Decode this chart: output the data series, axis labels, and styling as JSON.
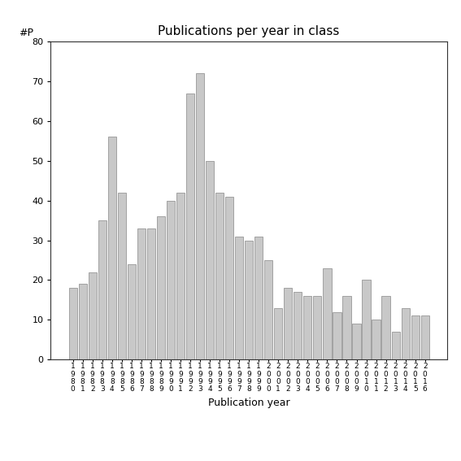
{
  "years": [
    "1980",
    "1981",
    "1982",
    "1983",
    "1984",
    "1985",
    "1986",
    "1987",
    "1988",
    "1989",
    "1990",
    "1991",
    "1992",
    "1993",
    "1994",
    "1995",
    "1996",
    "1997",
    "1998",
    "1999",
    "2000",
    "2001",
    "2002",
    "2003",
    "2004",
    "2005",
    "2006",
    "2007",
    "2008",
    "2009",
    "2010",
    "2011",
    "2012",
    "2013",
    "2014",
    "2015",
    "2016"
  ],
  "values": [
    18,
    19,
    22,
    35,
    56,
    42,
    24,
    33,
    33,
    36,
    40,
    42,
    67,
    72,
    50,
    42,
    41,
    31,
    30,
    31,
    25,
    13,
    18,
    17,
    16,
    16,
    23,
    12,
    16,
    9,
    20,
    10,
    16,
    7,
    13,
    11,
    11
  ],
  "bar_color": "#c8c8c8",
  "bar_edge_color": "#888888",
  "title": "Publications per year in class",
  "xlabel": "Publication year",
  "ylabel": "#P",
  "ylim": [
    0,
    80
  ],
  "yticks": [
    0,
    10,
    20,
    30,
    40,
    50,
    60,
    70,
    80
  ],
  "title_fontsize": 11,
  "label_fontsize": 9,
  "tick_fontsize": 8,
  "bg_color": "#ffffff"
}
